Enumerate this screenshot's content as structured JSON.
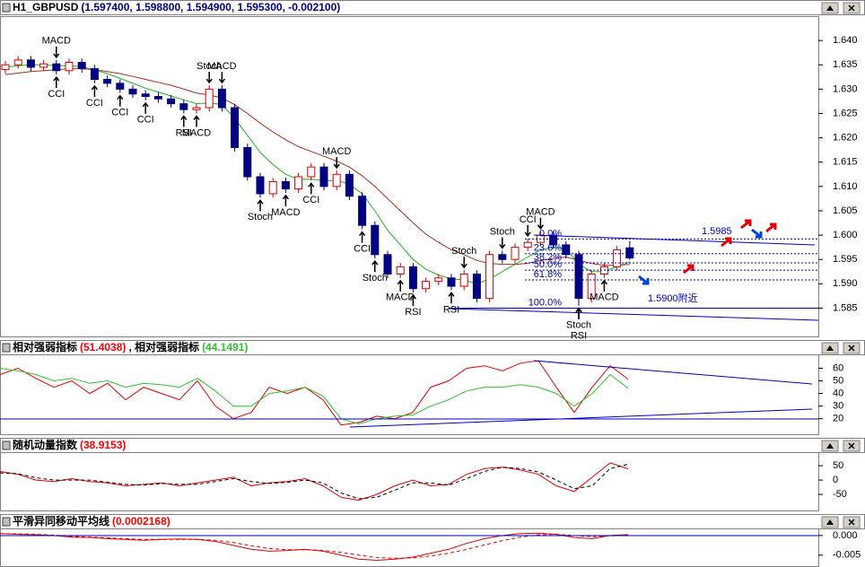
{
  "chart_data": [
    {
      "type": "candlestick",
      "header": [
        {
          "text": "H1_GBPUSD",
          "color": "#000000"
        },
        {
          "text": "(1.597400, 1.598800, 1.594900, 1.595300, -0.002100)",
          "color": "#000080"
        }
      ],
      "open": [
        1.634,
        1.635,
        1.636,
        1.6345,
        1.6352,
        1.6338,
        1.6355,
        1.6342,
        1.632,
        1.6312,
        1.63,
        1.629,
        1.6285,
        1.628,
        1.627,
        1.6258,
        1.6262,
        1.63,
        1.6262,
        1.618,
        1.612,
        1.6085,
        1.611,
        1.6095,
        1.612,
        1.614,
        1.61,
        1.6125,
        1.608,
        1.602,
        1.596,
        1.592,
        1.5935,
        1.589,
        1.5905,
        1.5912,
        1.5895,
        1.592,
        1.587,
        1.596,
        1.595,
        1.5975,
        1.5985,
        1.6,
        1.598,
        1.596,
        1.587,
        1.592,
        1.5935,
        1.5974
      ],
      "high": [
        1.6358,
        1.6368,
        1.6368,
        1.636,
        1.636,
        1.6363,
        1.6363,
        1.635,
        1.6328,
        1.632,
        1.6308,
        1.6298,
        1.6293,
        1.6288,
        1.6278,
        1.627,
        1.6308,
        1.6308,
        1.627,
        1.6188,
        1.6128,
        1.6118,
        1.6118,
        1.6128,
        1.6148,
        1.6148,
        1.6133,
        1.6133,
        1.6088,
        1.6028,
        1.5968,
        1.5943,
        1.5943,
        1.5913,
        1.592,
        1.592,
        1.5928,
        1.5928,
        1.5968,
        1.5968,
        1.5983,
        1.5993,
        1.6008,
        1.6008,
        1.5988,
        1.5968,
        1.5928,
        1.5943,
        1.5978,
        1.5988
      ],
      "low": [
        1.6332,
        1.6342,
        1.6337,
        1.6337,
        1.633,
        1.633,
        1.6334,
        1.6312,
        1.6304,
        1.6292,
        1.6282,
        1.6277,
        1.6272,
        1.6262,
        1.625,
        1.625,
        1.6254,
        1.6254,
        1.6172,
        1.6112,
        1.6077,
        1.6077,
        1.6087,
        1.6087,
        1.6112,
        1.6092,
        1.6092,
        1.6072,
        1.6012,
        1.5952,
        1.5912,
        1.5912,
        1.5882,
        1.5882,
        1.5897,
        1.5887,
        1.5887,
        1.5862,
        1.5862,
        1.5942,
        1.5942,
        1.5967,
        1.5977,
        1.5972,
        1.5952,
        1.5855,
        1.5862,
        1.5912,
        1.5927,
        1.5949
      ],
      "close": [
        1.635,
        1.636,
        1.6345,
        1.6352,
        1.6338,
        1.6355,
        1.6342,
        1.632,
        1.6312,
        1.63,
        1.629,
        1.6285,
        1.628,
        1.627,
        1.6258,
        1.6262,
        1.63,
        1.6262,
        1.618,
        1.612,
        1.6085,
        1.611,
        1.6095,
        1.612,
        1.614,
        1.61,
        1.6125,
        1.608,
        1.602,
        1.596,
        1.592,
        1.5935,
        1.589,
        1.5905,
        1.5912,
        1.5895,
        1.592,
        1.587,
        1.596,
        1.595,
        1.5975,
        1.5985,
        1.6,
        1.598,
        1.596,
        1.587,
        1.592,
        1.5935,
        1.597,
        1.5953
      ],
      "up_color": "#d00000",
      "down_color": "#000080",
      "series": [
        {
          "color": "#20b020",
          "values": [
            1.6345,
            1.6348,
            1.635,
            1.635,
            1.6348,
            1.6348,
            1.6346,
            1.634,
            1.6332,
            1.6322,
            1.6312,
            1.6302,
            1.6294,
            1.6286,
            1.6278,
            1.627,
            1.6272,
            1.6268,
            1.624,
            1.6205,
            1.617,
            1.6145,
            1.6125,
            1.6115,
            1.6115,
            1.6112,
            1.6112,
            1.6105,
            1.6085,
            1.605,
            1.601,
            1.598,
            1.595,
            1.593,
            1.5918,
            1.591,
            1.5908,
            1.59,
            1.591,
            1.5925,
            1.594,
            1.5955,
            1.597,
            1.5975,
            1.5972,
            1.594,
            1.5925,
            1.5925,
            1.5935,
            1.5945
          ]
        },
        {
          "color": "#a03020",
          "values": [
            1.633,
            1.6333,
            1.6336,
            1.6338,
            1.634,
            1.6342,
            1.6342,
            1.634,
            1.6336,
            1.6332,
            1.6326,
            1.632,
            1.6314,
            1.6308,
            1.63,
            1.6292,
            1.6288,
            1.6282,
            1.6268,
            1.625,
            1.623,
            1.6212,
            1.6196,
            1.6182,
            1.6172,
            1.6162,
            1.6152,
            1.614,
            1.6122,
            1.61,
            1.6075,
            1.605,
            1.6025,
            1.6002,
            1.5985,
            1.597,
            1.596,
            1.5948,
            1.5942,
            1.594,
            1.594,
            1.5942,
            1.5948,
            1.5952,
            1.5955,
            1.5948,
            1.5942,
            1.5938,
            1.5938,
            1.594
          ]
        }
      ],
      "ylim": [
        1.579,
        1.645
      ],
      "yticks": [
        1.585,
        {
          "value": 1.59,
          "label": "1.590"
        },
        1.595,
        {
          "value": 1.6,
          "label": "1.600"
        },
        1.605,
        {
          "value": 1.61,
          "label": "1.610"
        },
        1.615,
        {
          "value": 1.62,
          "label": "1.620"
        },
        1.625,
        {
          "value": 1.63,
          "label": "1.630"
        },
        1.635,
        {
          "value": 1.64,
          "label": "1.640"
        }
      ],
      "fib_levels": [
        {
          "label": "0.0%",
          "value": 1.5992
        },
        {
          "label": "23.6%",
          "value": 1.5962
        },
        {
          "label": "38.2%",
          "value": 1.5943
        },
        {
          "label": "50.0%",
          "value": 1.5928
        },
        {
          "label": "61.8%",
          "value": 1.5908
        },
        {
          "label": "100.0%",
          "value": 1.585
        }
      ],
      "annotations": [
        {
          "text": "1.5985"
        },
        {
          "text": "1.5900附近"
        }
      ],
      "signals": [
        {
          "text": "MACD"
        },
        {
          "text": "CCI"
        },
        {
          "text": "CCI"
        },
        {
          "text": "CCI"
        },
        {
          "text": "CCI"
        },
        {
          "text": "RSI"
        },
        {
          "text": "MACD"
        },
        {
          "text": "Stoch"
        },
        {
          "text": "MACD"
        },
        {
          "text": "Stoch"
        },
        {
          "text": "MACD"
        },
        {
          "text": "CCI"
        },
        {
          "text": "MACD"
        },
        {
          "text": "CCI"
        },
        {
          "text": "Stoch"
        },
        {
          "text": "MACD"
        },
        {
          "text": "RSI"
        },
        {
          "text": "RSI"
        },
        {
          "text": "Stoch"
        },
        {
          "text": "Stoch"
        },
        {
          "text": "CCI"
        },
        {
          "text": "MACD"
        },
        {
          "text": "Stoch"
        },
        {
          "text": "RSI"
        },
        {
          "text": "MACD"
        }
      ],
      "grid": false
    },
    {
      "type": "line",
      "header": [
        {
          "text": "相对强弱指标",
          "color": "#000000"
        },
        {
          "text": "(51.4038)",
          "color": "#ff0000"
        },
        {
          "text": ", 相对强弱指标",
          "color": "#000000"
        },
        {
          "text": "(44.1491)",
          "color": "#30c030"
        }
      ],
      "series": [
        {
          "color": "#e00000",
          "values": [
            55,
            60,
            52,
            45,
            50,
            40,
            48,
            35,
            45,
            40,
            35,
            50,
            30,
            20,
            25,
            45,
            40,
            45,
            35,
            15,
            17,
            22,
            20,
            25,
            45,
            50,
            60,
            62,
            58,
            64,
            66,
            45,
            25,
            45,
            62,
            51.4038
          ]
        },
        {
          "color": "#30c030",
          "values": [
            60,
            58,
            55,
            50,
            52,
            48,
            50,
            45,
            48,
            47,
            45,
            52,
            42,
            30,
            30,
            40,
            42,
            45,
            38,
            20,
            16,
            20,
            22,
            23,
            30,
            35,
            42,
            45,
            45,
            47,
            45,
            40,
            30,
            40,
            55,
            44.1491
          ]
        }
      ],
      "ylim": [
        7,
        71
      ],
      "yticks": [
        20,
        30,
        40,
        50,
        60
      ],
      "grid": false
    },
    {
      "type": "line",
      "header": [
        {
          "text": "随机动量指数",
          "color": "#000000"
        },
        {
          "text": "(38.9153)",
          "color": "#ff0000"
        }
      ],
      "series": [
        {
          "color": "#e00000",
          "dashed": false,
          "values": [
            30,
            20,
            0,
            -5,
            5,
            -5,
            -10,
            -20,
            -15,
            -10,
            -20,
            -10,
            0,
            10,
            -20,
            -10,
            -5,
            5,
            -20,
            -60,
            -70,
            -50,
            -20,
            0,
            -20,
            -15,
            20,
            40,
            45,
            35,
            20,
            -20,
            -40,
            10,
            60,
            38.9153
          ]
        },
        {
          "color": "#000000",
          "dashed": true,
          "values": [
            25,
            22,
            8,
            0,
            0,
            0,
            -8,
            -15,
            -18,
            -12,
            -15,
            -15,
            -5,
            5,
            -5,
            -12,
            -8,
            0,
            -10,
            -45,
            -65,
            -60,
            -35,
            -10,
            -10,
            -18,
            5,
            30,
            45,
            40,
            28,
            0,
            -30,
            -20,
            40,
            55
          ]
        }
      ],
      "ylim": [
        -109,
        97
      ],
      "yticks": [
        -50,
        0,
        50
      ],
      "grid": false
    },
    {
      "type": "line",
      "header": [
        {
          "text": "平滑异同移动平均线",
          "color": "#000000"
        },
        {
          "text": "(0.0002168)",
          "color": "#ff0000"
        }
      ],
      "series": [
        {
          "color": "#e00000",
          "dashed": false,
          "values": [
            0.0005,
            0.0003,
            0.0002,
            0,
            -0.0004,
            -0.0005,
            -0.0008,
            -0.001,
            -0.0012,
            -0.001,
            -0.0009,
            -0.001,
            -0.0015,
            -0.0025,
            -0.0035,
            -0.004,
            -0.0038,
            -0.0035,
            -0.004,
            -0.005,
            -0.006,
            -0.0063,
            -0.006,
            -0.0055,
            -0.0045,
            -0.0035,
            -0.002,
            -0.0008,
            0,
            0.0005,
            0.0006,
            0.0003,
            -0.0005,
            -0.0008,
            0,
            0.0002168
          ]
        },
        {
          "color": "#e00000",
          "dashed": true,
          "values": [
            0.0005,
            0.0004,
            0.0003,
            0.0001,
            -0.0002,
            -0.0004,
            -0.0006,
            -0.0008,
            -0.001,
            -0.001,
            -0.001,
            -0.001,
            -0.0012,
            -0.0018,
            -0.0026,
            -0.0033,
            -0.0036,
            -0.0036,
            -0.0038,
            -0.0043,
            -0.005,
            -0.0056,
            -0.0058,
            -0.0057,
            -0.0052,
            -0.0045,
            -0.0035,
            -0.0024,
            -0.0013,
            -0.0004,
            0.0002,
            0.0003,
            0,
            -0.0003,
            -0.0001,
            0.0001
          ]
        }
      ],
      "ylim": [
        -0.008,
        0.0018
      ],
      "yticks": [
        {
          "value": 0,
          "label": "0.000"
        },
        -0.005
      ],
      "grid": false
    }
  ]
}
